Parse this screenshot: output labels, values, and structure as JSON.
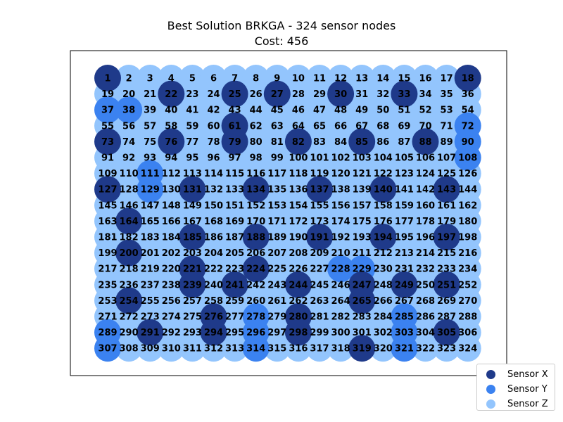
{
  "chart_data": {
    "type": "scatter",
    "title": "Best Solution BRKGA - 324 sensor nodes",
    "subtitle": "Cost: 456",
    "grid": {
      "rows": 18,
      "cols": 18
    },
    "series": [
      {
        "name": "Sensor X",
        "color": "#1f3a8a",
        "nodes": [
          1,
          18,
          22,
          25,
          27,
          30,
          33,
          61,
          73,
          76,
          79,
          82,
          85,
          88,
          127,
          131,
          134,
          137,
          140,
          143,
          164,
          185,
          188,
          191,
          194,
          197,
          200,
          221,
          224,
          239,
          241,
          244,
          247,
          249,
          251,
          254,
          265,
          276,
          280,
          291,
          294,
          298,
          305,
          319
        ]
      },
      {
        "name": "Sensor Y",
        "color": "#3b82f0",
        "nodes": [
          37,
          38,
          72,
          90,
          108,
          111,
          129,
          228,
          229,
          278,
          285,
          289,
          296,
          303,
          307,
          314,
          321
        ]
      },
      {
        "name": "Sensor Z",
        "color": "#93c5fd",
        "nodes": "all remaining nodes 1–324"
      }
    ],
    "labels": "node numbers 1–324 (row-major, 18 per row)",
    "legend": {
      "position": "bottom-right"
    },
    "axes_visible": false
  }
}
